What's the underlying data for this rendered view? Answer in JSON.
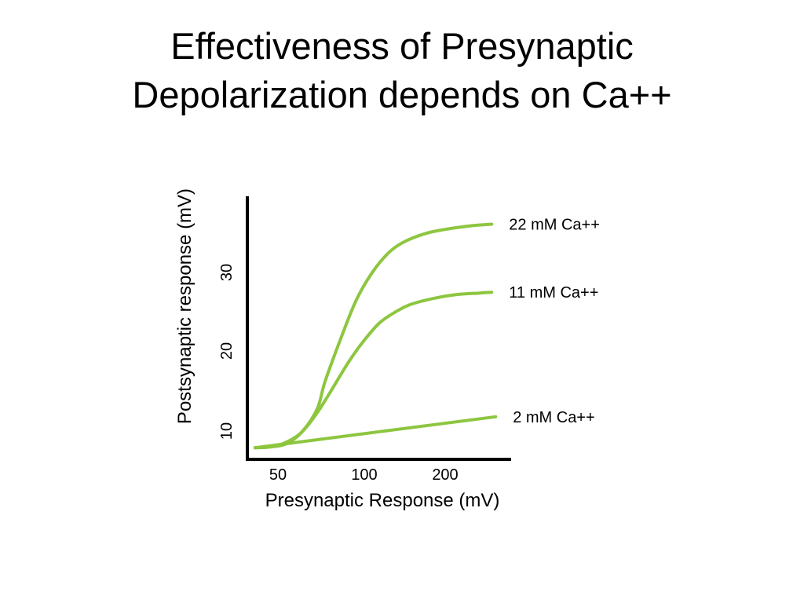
{
  "slide": {
    "title_line1": "Effectiveness of Presynaptic",
    "title_line2": "Depolarization depends on Ca++"
  },
  "chart_data": {
    "type": "line",
    "title": "",
    "xlabel": "Presynaptic Response (mV)",
    "ylabel": "Postsynaptic response (mV)",
    "x_ticks": [
      "50",
      "100",
      "200"
    ],
    "y_ticks": [
      "10",
      "20",
      "30"
    ],
    "grid": false,
    "legend": "none (series labeled at line ends)",
    "line_color": "#8dc63f",
    "series": [
      {
        "name": "22 mM Ca++",
        "x": [
          10,
          30,
          50,
          70,
          90,
          100,
          120,
          140,
          160,
          180,
          200,
          230,
          260,
          290,
          315
        ],
        "y": [
          9.5,
          9.6,
          10,
          11.5,
          14.5,
          18,
          23.5,
          28.5,
          32,
          34.5,
          36,
          37.2,
          37.8,
          38.2,
          38.4
        ]
      },
      {
        "name": "11 mM Ca++",
        "x": [
          10,
          30,
          50,
          70,
          90,
          110,
          130,
          150,
          170,
          190,
          210,
          240,
          270,
          300,
          315
        ],
        "y": [
          9.5,
          9.6,
          10.2,
          11.5,
          14,
          17.2,
          20.5,
          23.3,
          25.6,
          27,
          28,
          28.8,
          29.3,
          29.5,
          29.6
        ]
      },
      {
        "name": "2 mM Ca++",
        "x": [
          10,
          320
        ],
        "y": [
          9.5,
          13.5
        ]
      }
    ]
  }
}
